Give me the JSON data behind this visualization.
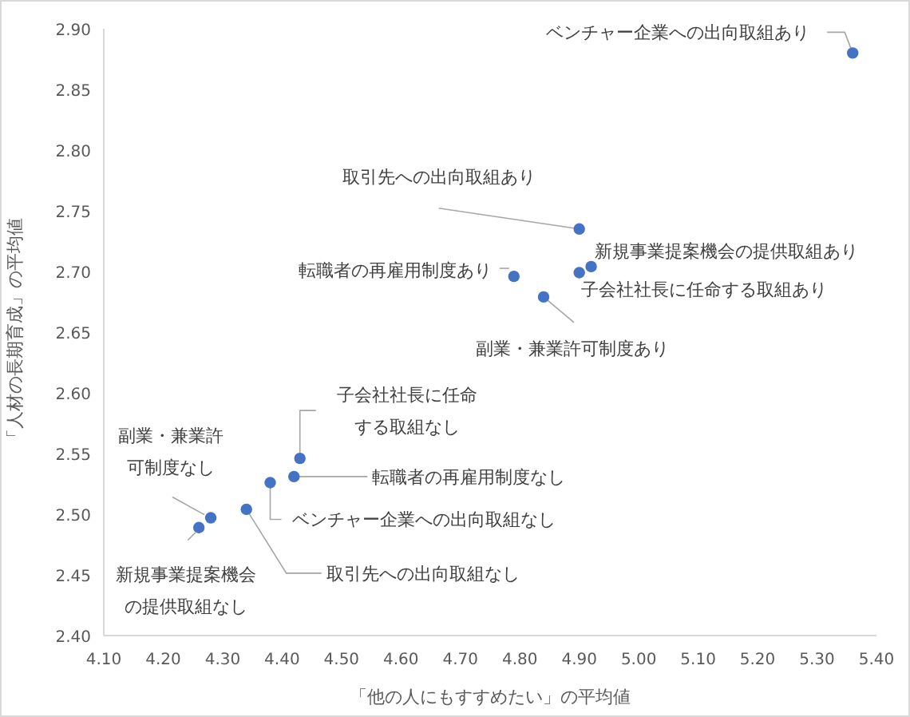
{
  "chart_data": {
    "type": "scatter",
    "xlabel": "「他の人にもすすめたい」の平均値",
    "ylabel": "「人材の長期育成」の平均値",
    "x": [
      5.36,
      4.9,
      4.92,
      4.9,
      4.79,
      4.84,
      4.43,
      4.42,
      4.38,
      4.34,
      4.28,
      4.26
    ],
    "values": [
      2.88,
      2.735,
      2.704,
      2.699,
      2.696,
      2.679,
      2.546,
      2.531,
      2.526,
      2.504,
      2.497,
      2.489
    ],
    "color": "#4472c4",
    "marker": "circle",
    "xlim": [
      4.1,
      5.4
    ],
    "ylim": [
      2.4,
      2.9
    ],
    "xticks": [
      {
        "value": 4.1,
        "label": "4.10"
      },
      {
        "value": 4.2,
        "label": "4.20"
      },
      {
        "value": 4.3,
        "label": "4.30"
      },
      {
        "value": 4.4,
        "label": "4.40"
      },
      {
        "value": 4.5,
        "label": "4.50"
      },
      {
        "value": 4.6,
        "label": "4.60"
      },
      {
        "value": 4.7,
        "label": "4.70"
      },
      {
        "value": 4.8,
        "label": "4.80"
      },
      {
        "value": 4.9,
        "label": "4.90"
      },
      {
        "value": 5.0,
        "label": "5.00"
      },
      {
        "value": 5.1,
        "label": "5.10"
      },
      {
        "value": 5.2,
        "label": "5.20"
      },
      {
        "value": 5.3,
        "label": "5.30"
      },
      {
        "value": 5.4,
        "label": "5.40"
      }
    ],
    "yticks": [
      {
        "value": 2.4,
        "label": "2.40"
      },
      {
        "value": 2.45,
        "label": "2.45"
      },
      {
        "value": 2.5,
        "label": "2.50"
      },
      {
        "value": 2.55,
        "label": "2.55"
      },
      {
        "value": 2.6,
        "label": "2.60"
      },
      {
        "value": 2.65,
        "label": "2.65"
      },
      {
        "value": 2.7,
        "label": "2.70"
      },
      {
        "value": 2.75,
        "label": "2.75"
      },
      {
        "value": 2.8,
        "label": "2.80"
      },
      {
        "value": 2.85,
        "label": "2.85"
      },
      {
        "value": 2.9,
        "label": "2.90"
      }
    ],
    "grid": false,
    "annotations": [
      {
        "text": "ベンチャー企業への出向取組あり",
        "x": 5.36,
        "y": 2.88
      },
      {
        "text": "取引先への出向取組あり",
        "x": 4.9,
        "y": 2.735
      },
      {
        "text": "新規事業提案機会の提供取組あり",
        "x": 4.92,
        "y": 2.704
      },
      {
        "text": "子会社社長に任命する取組あり",
        "x": 4.9,
        "y": 2.699
      },
      {
        "text": "転職者の再雇用制度あり",
        "x": 4.79,
        "y": 2.696
      },
      {
        "text": "副業・兼業許可制度あり",
        "x": 4.84,
        "y": 2.679
      },
      {
        "text": "子会社社長に任命する取組なし",
        "x": 4.43,
        "y": 2.546
      },
      {
        "text": "転職者の再雇用制度なし",
        "x": 4.42,
        "y": 2.531
      },
      {
        "text": "ベンチャー企業への出向取組なし",
        "x": 4.38,
        "y": 2.526
      },
      {
        "text": "取引先への出向取組なし",
        "x": 4.34,
        "y": 2.504
      },
      {
        "text": "副業・兼業許可制度なし",
        "x": 4.28,
        "y": 2.497
      },
      {
        "text": "新規事業提案機会の提供取組なし",
        "x": 4.26,
        "y": 2.489
      }
    ]
  }
}
